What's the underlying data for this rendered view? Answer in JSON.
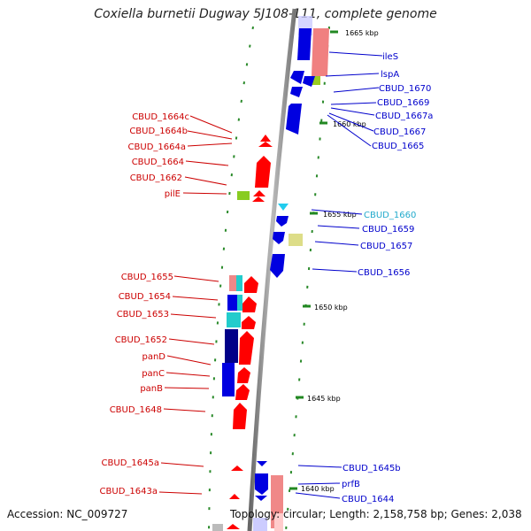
{
  "title": "Coxiella burnetii Dugway 5J108-111, complete genome",
  "footer": {
    "accession": "Accession: NC_009727",
    "topology": "Topology: circular; Length: 2,158,758 bp; Genes: 2,038"
  },
  "ticks": [
    "1665 kbp",
    "1660 kbp",
    "1655 kbp",
    "1650 kbp",
    "1645 kbp",
    "1640 kbp"
  ],
  "right_genes": [
    "ileS",
    "lspA",
    "CBUD_1670",
    "CBUD_1669",
    "CBUD_1667a",
    "CBUD_1667",
    "CBUD_1665",
    "CBUD_1660",
    "CBUD_1659",
    "CBUD_1657",
    "CBUD_1656",
    "CBUD_1645b",
    "prfB",
    "CBUD_1644"
  ],
  "left_genes": [
    "CBUD_1664c",
    "CBUD_1664b",
    "CBUD_1664a",
    "CBUD_1664",
    "CBUD_1662",
    "pilE",
    "CBUD_1655",
    "CBUD_1654",
    "CBUD_1653",
    "CBUD_1652",
    "panD",
    "panC",
    "panB",
    "CBUD_1648",
    "CBUD_1645a",
    "CBUD_1643a"
  ],
  "colors": {
    "forward": "#ff0000",
    "reverse": "#0000ff",
    "highlight": "#22aacc",
    "backbone": "#888888",
    "tick": "#228822"
  }
}
